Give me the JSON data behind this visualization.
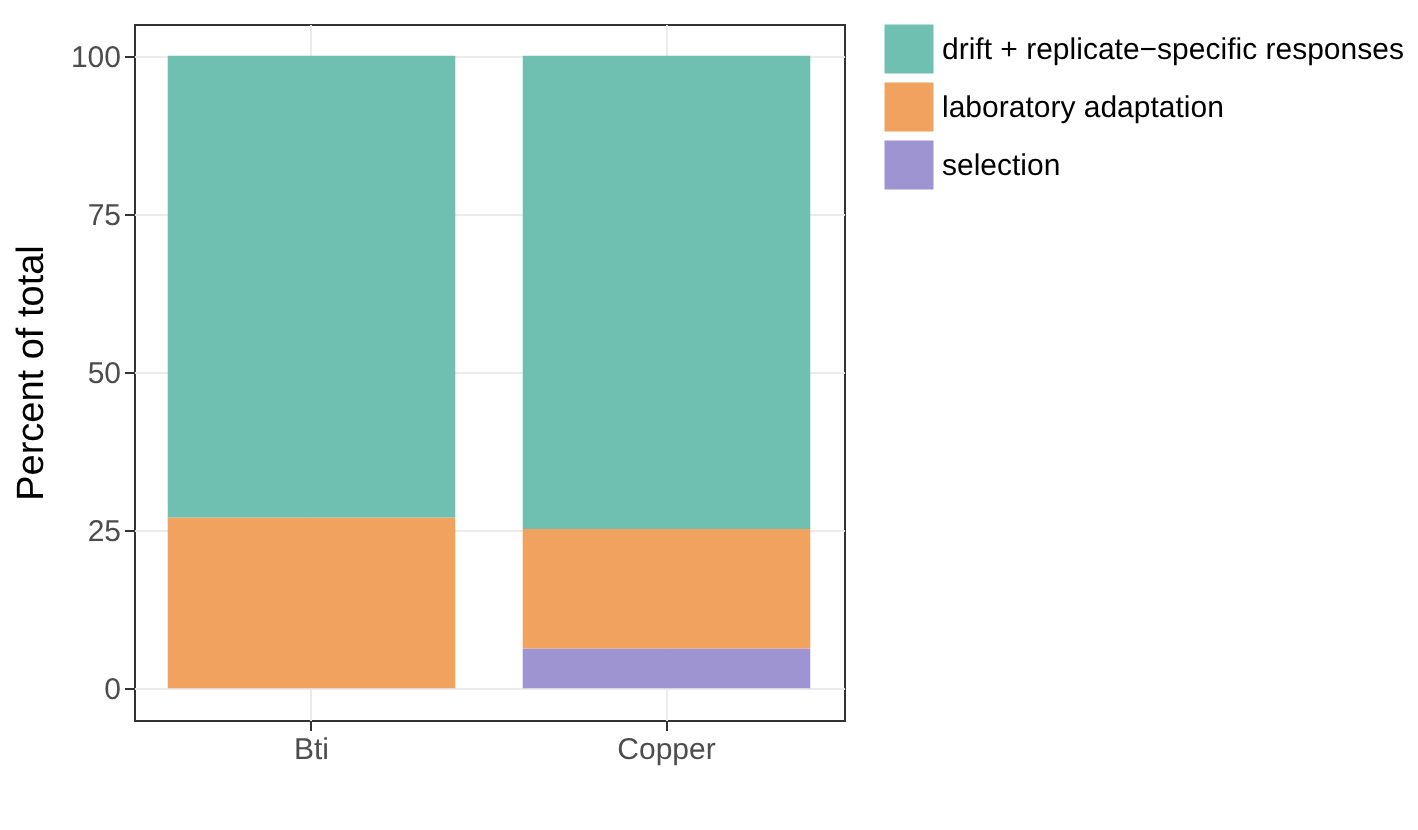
{
  "chart_data": {
    "type": "bar",
    "ylabel": "Percent of total",
    "categories": [
      "Bti",
      "Copper"
    ],
    "stacked": true,
    "series": [
      {
        "name": "selection",
        "color": "#9e94d2",
        "values": [
          0,
          6.3
        ]
      },
      {
        "name": "laboratory adaptation",
        "color": "#f2a25f",
        "values": [
          27,
          18.9
        ]
      },
      {
        "name": "drift + replicate−specific responses",
        "color": "#6fc0b0",
        "values": [
          73,
          74.8
        ]
      }
    ],
    "ylim": [
      -5,
      105
    ],
    "yticks": [
      0,
      25,
      50,
      75,
      100
    ],
    "grid": true,
    "legend": "right"
  }
}
